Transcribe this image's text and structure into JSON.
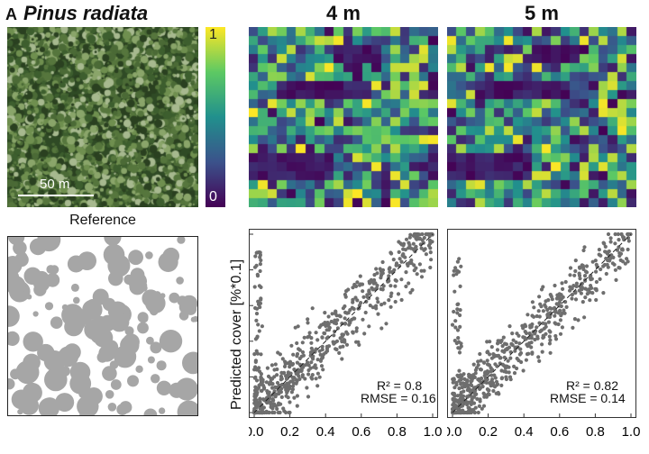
{
  "header": {
    "panel_letter": "A",
    "species": "Pinus radiata"
  },
  "photo": {
    "scale_label": "50 m"
  },
  "reference": {
    "title": "Reference"
  },
  "colorbar": {
    "max_label": "1",
    "min_label": "0",
    "colors": [
      "#440154",
      "#3b528b",
      "#21908d",
      "#5dc963",
      "#fde725"
    ]
  },
  "panels": [
    {
      "title": "4 m",
      "r2_label": "R² = 0.8",
      "rmse_label": "RMSE = 0.16"
    },
    {
      "title": "5 m",
      "r2_label": "R² = 0.82",
      "rmse_label": "RMSE = 0.14"
    }
  ],
  "chart_data": [
    {
      "type": "scatter",
      "ylabel": "Predicted cover [%*0.1]",
      "xlim": [
        0,
        1
      ],
      "ylim": [
        0,
        1
      ],
      "x_tick_labels": [
        "0.0",
        "0.2",
        "0.4",
        "0.6",
        "0.8",
        "1.0"
      ],
      "r2": 0.8,
      "rmse": 0.16,
      "reference_line": "1:1 dashed",
      "point_color": "#6e6e6e"
    },
    {
      "type": "scatter",
      "xlim": [
        0,
        1
      ],
      "ylim": [
        0,
        1
      ],
      "x_tick_labels": [
        "0.0",
        "0.2",
        "0.4",
        "0.6",
        "0.8",
        "1.0"
      ],
      "r2": 0.82,
      "rmse": 0.14,
      "reference_line": "1:1 dashed",
      "point_color": "#6e6e6e"
    }
  ]
}
